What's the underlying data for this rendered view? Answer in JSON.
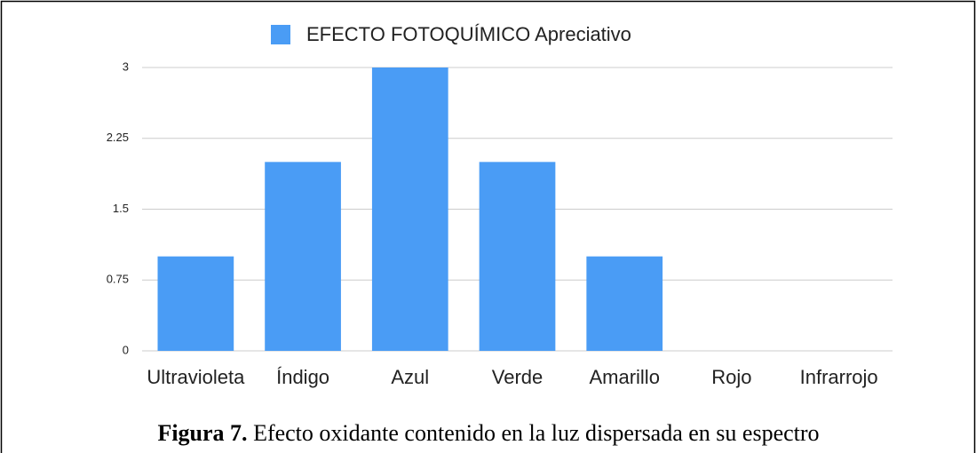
{
  "chart_data": {
    "type": "bar",
    "categories": [
      "Ultravioleta",
      "Índigo",
      "Azul",
      "Verde",
      "Amarillo",
      "Rojo",
      "Infrarrojo"
    ],
    "series": [
      {
        "name": "EFECTO FOTOQUÍMICO Apreciativo",
        "color": "#4a9cf5",
        "values": [
          1,
          2,
          3,
          2,
          1,
          0,
          0
        ]
      }
    ],
    "ylim": [
      0,
      3
    ],
    "yticks": [
      0,
      0.75,
      1.5,
      2.25,
      3
    ],
    "grid": true,
    "legend": "top"
  },
  "caption": {
    "label": "Figura 7.",
    "text": "Efecto oxidante contenido en la luz dispersada en su espectro"
  }
}
